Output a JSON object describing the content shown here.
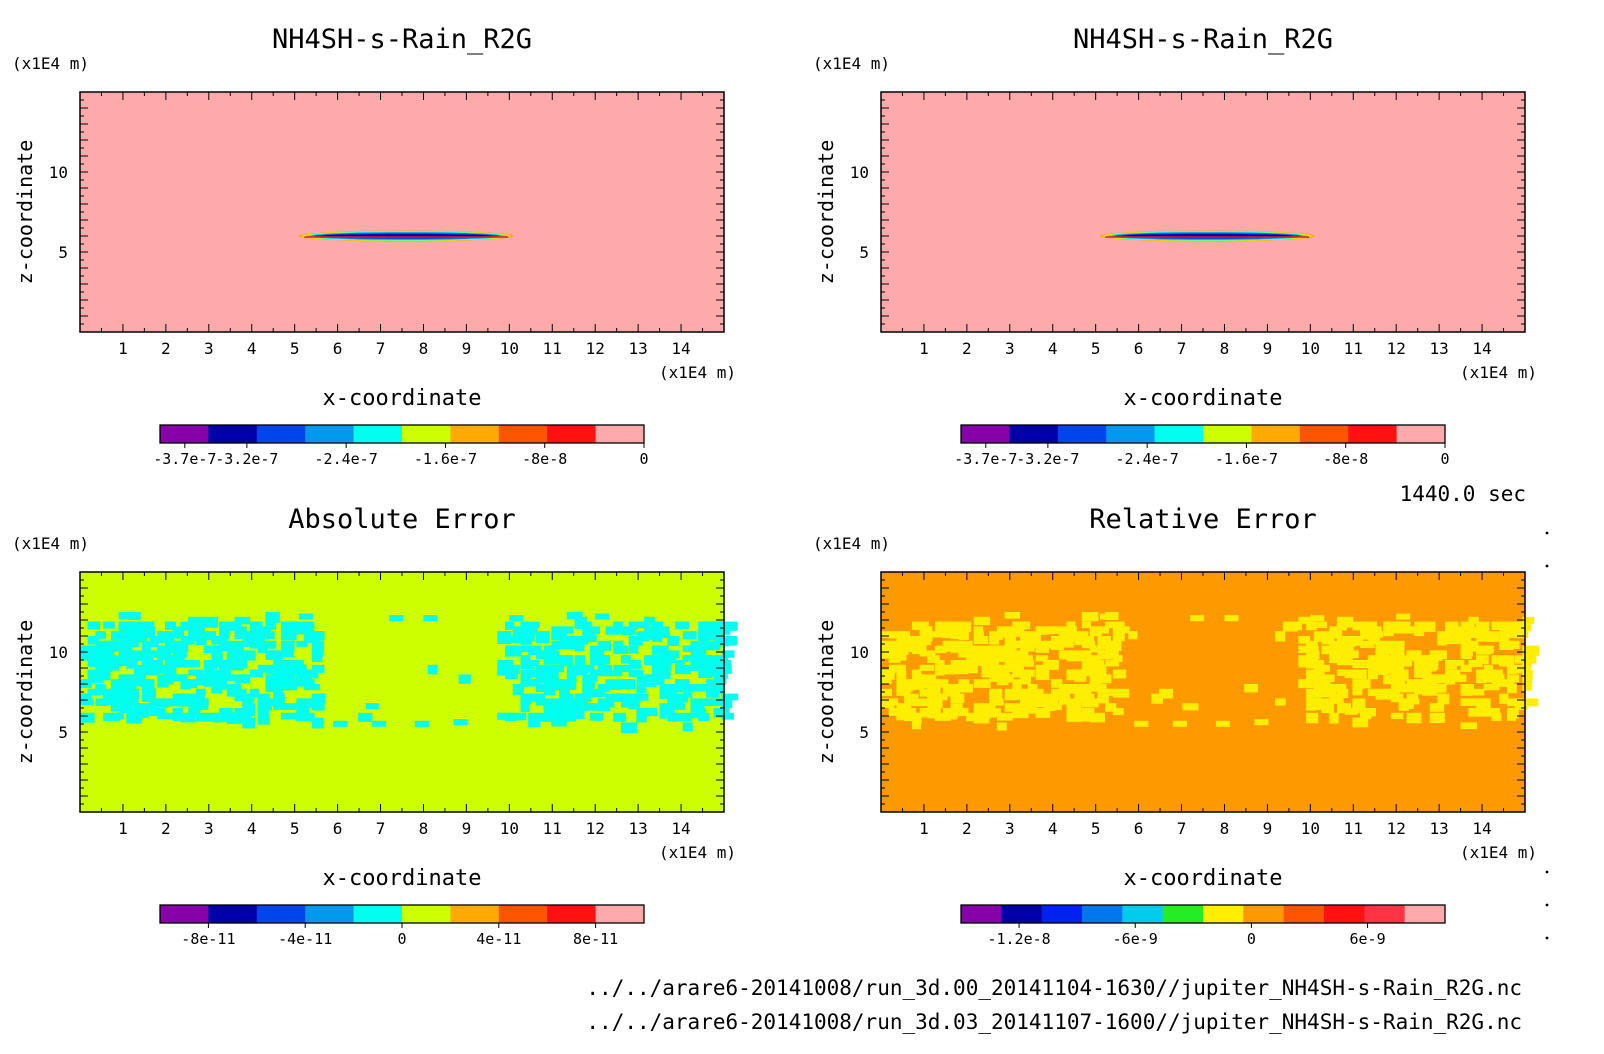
{
  "time_label": "1440.0 sec",
  "footer": {
    "file_1": "../../arare6-20141008/run_3d.00_20141104-1630//jupiter_NH4SH-s-Rain_R2G.nc",
    "file_2": "../../arare6-20141008/run_3d.03_20141107-1600//jupiter_NH4SH-s-Rain_R2G.nc"
  },
  "chart_data": [
    {
      "type": "heatmap",
      "title": "NH4SH-s-Rain_R2G",
      "xlabel": "x-coordinate",
      "ylabel": "z-coordinate",
      "x_unit": "(x1E4 m)",
      "y_unit": "(x1E4 m)",
      "xlim": [
        0,
        15
      ],
      "ylim": [
        0,
        15
      ],
      "x_ticks": [
        1,
        2,
        3,
        4,
        5,
        6,
        7,
        8,
        9,
        10,
        11,
        12,
        13,
        14
      ],
      "y_ticks": [
        5,
        10
      ],
      "background_color": "#ffaaaa",
      "feature": {
        "description_values": "thin negative band at z~6 spanning x~5 to x~10",
        "x_range": [
          5.1,
          10.1
        ],
        "z_center": 6.0,
        "min_value": -3.7e-07
      },
      "colorbar": {
        "colors": [
          "#8800aa",
          "#0000aa",
          "#0044ee",
          "#0099ee",
          "#00ffee",
          "#ccff00",
          "#ffaa00",
          "#ff5500",
          "#ff1111",
          "#ffaaaa"
        ],
        "tick_labels": [
          "-3.7e-7",
          "-3.2e-7",
          "-2.4e-7",
          "-1.6e-7",
          "-8e-8",
          "0"
        ],
        "tick_values": [
          -3.7e-07,
          -3.2e-07,
          -2.4e-07,
          -1.6e-07,
          -8e-08,
          0
        ],
        "vmin": -3.9e-07,
        "vmax": 0
      }
    },
    {
      "type": "heatmap",
      "title": "NH4SH-s-Rain_R2G",
      "xlabel": "x-coordinate",
      "ylabel": "z-coordinate",
      "x_unit": "(x1E4 m)",
      "y_unit": "(x1E4 m)",
      "xlim": [
        0,
        15
      ],
      "ylim": [
        0,
        15
      ],
      "x_ticks": [
        1,
        2,
        3,
        4,
        5,
        6,
        7,
        8,
        9,
        10,
        11,
        12,
        13,
        14
      ],
      "y_ticks": [
        5,
        10
      ],
      "background_color": "#ffaaaa",
      "feature": {
        "description_values": "thin negative band at z~6 spanning x~5 to x~10",
        "x_range": [
          5.1,
          10.1
        ],
        "z_center": 6.0,
        "min_value": -3.7e-07
      },
      "colorbar": {
        "colors": [
          "#8800aa",
          "#0000aa",
          "#0044ee",
          "#0099ee",
          "#00ffee",
          "#ccff00",
          "#ffaa00",
          "#ff5500",
          "#ff1111",
          "#ffaaaa"
        ],
        "tick_labels": [
          "-3.7e-7",
          "-3.2e-7",
          "-2.4e-7",
          "-1.6e-7",
          "-8e-8",
          "0"
        ],
        "tick_values": [
          -3.7e-07,
          -3.2e-07,
          -2.4e-07,
          -1.6e-07,
          -8e-08,
          0
        ],
        "vmin": -3.9e-07,
        "vmax": 0
      }
    },
    {
      "type": "heatmap",
      "title": "Absolute Error",
      "xlabel": "x-coordinate",
      "ylabel": "z-coordinate",
      "x_unit": "(x1E4 m)",
      "y_unit": "(x1E4 m)",
      "xlim": [
        0,
        15
      ],
      "ylim": [
        0,
        15
      ],
      "x_ticks": [
        1,
        2,
        3,
        4,
        5,
        6,
        7,
        8,
        9,
        10,
        11,
        12,
        13,
        14
      ],
      "y_ticks": [
        5,
        10
      ],
      "background_color": "#ccff00",
      "noise_color": "#00ffee",
      "noise_region": "z between ~6 and ~12, denser at the left and right sides (x<5.5 and x>9.5)",
      "colorbar": {
        "colors": [
          "#8800aa",
          "#0000aa",
          "#0044ee",
          "#0099ee",
          "#00ffee",
          "#ccff00",
          "#ffaa00",
          "#ff5500",
          "#ff1111",
          "#ffaaaa"
        ],
        "tick_labels": [
          "-8e-11",
          "-4e-11",
          "0",
          "4e-11",
          "8e-11"
        ],
        "tick_values": [
          -8e-11,
          -4e-11,
          0,
          4e-11,
          8e-11
        ],
        "vmin": -1e-10,
        "vmax": 1e-10
      }
    },
    {
      "type": "heatmap",
      "title": "Relative Error",
      "xlabel": "x-coordinate",
      "ylabel": "z-coordinate",
      "x_unit": "(x1E4 m)",
      "y_unit": "(x1E4 m)",
      "xlim": [
        0,
        15
      ],
      "ylim": [
        0,
        15
      ],
      "x_ticks": [
        1,
        2,
        3,
        4,
        5,
        6,
        7,
        8,
        9,
        10,
        11,
        12,
        13,
        14
      ],
      "y_ticks": [
        5,
        10
      ],
      "background_color": "#ff9900",
      "noise_color": "#ffee00",
      "noise_region": "z between ~6 and ~12, denser at the left and right sides (x<5.5 and x>9.5)",
      "colorbar": {
        "colors": [
          "#8800aa",
          "#0000aa",
          "#0022ee",
          "#0077ee",
          "#00ccee",
          "#22ee22",
          "#ffee00",
          "#ff9900",
          "#ff5500",
          "#ff1111",
          "#ff3344",
          "#ffaaaa"
        ],
        "tick_labels": [
          "-1.2e-8",
          "-6e-9",
          "0",
          "6e-9"
        ],
        "tick_values": [
          -1.2e-08,
          -6e-09,
          0,
          6e-09
        ],
        "vmin": -1.5e-08,
        "vmax": 1e-08
      }
    }
  ]
}
